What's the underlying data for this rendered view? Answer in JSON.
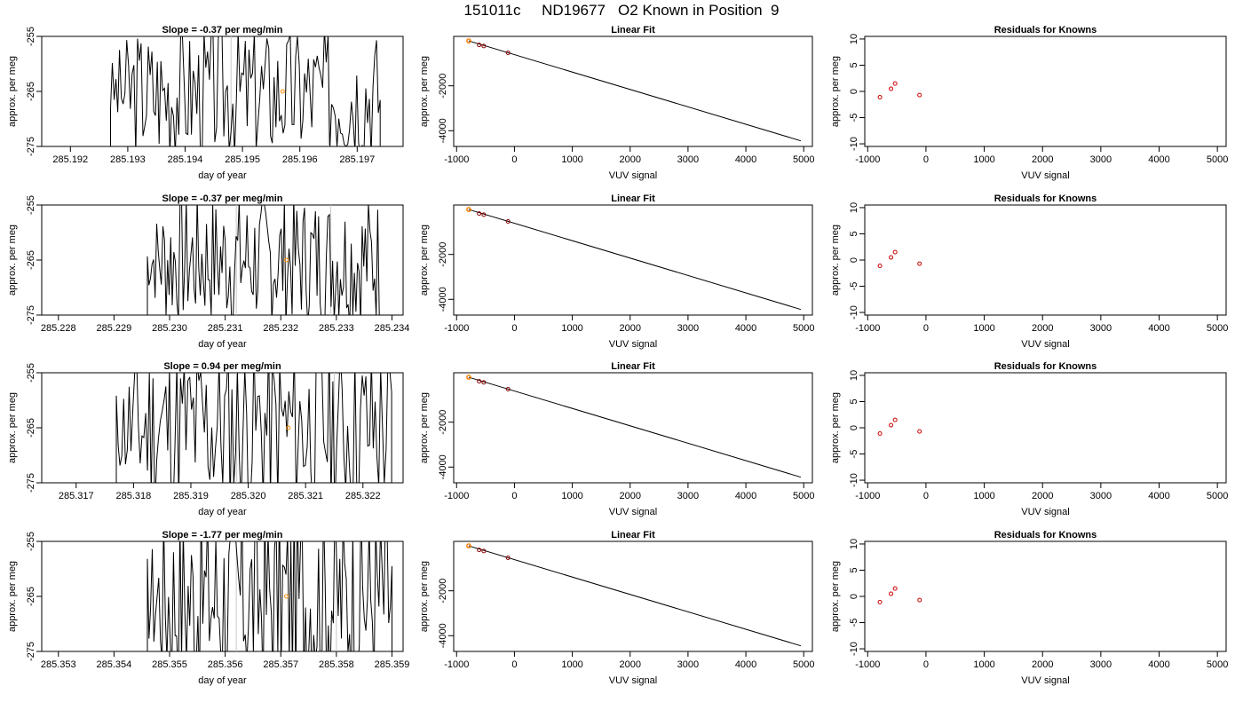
{
  "page": {
    "title": "151011c     ND19677   O2 Known in Position  9"
  },
  "colors": {
    "trace": "#000000",
    "marker": "#ff8c00",
    "residual": "#cc0000",
    "fit_point": "#8b0000",
    "vline": "#c8c8c8"
  },
  "chart_data": [
    {
      "type": "line",
      "title": "Slope =  -0.37  per meg/min",
      "xlabel": "day of year",
      "ylabel": "approx. per meg",
      "xlim": [
        285.1915,
        285.1978
      ],
      "ylim": [
        -275,
        -255
      ],
      "xticks": [
        "285.192",
        "285.193",
        "285.194",
        "285.195",
        "285.196",
        "285.197"
      ],
      "yticks": [
        "-255",
        "-265",
        "-275"
      ],
      "start": 285.1927,
      "end": 285.1974,
      "amplitude": 12,
      "seed": 3,
      "vlines": [
        285.1948,
        285.1965
      ],
      "marker": [
        285.1957,
        -265
      ]
    },
    {
      "type": "line",
      "title": "Linear Fit",
      "xlabel": "VUV signal",
      "ylabel": "approx. per meg",
      "xlim": [
        -1050,
        5150
      ],
      "ylim": [
        -4700,
        200
      ],
      "xticks": [
        "-1000",
        "0",
        "1000",
        "2000",
        "3000",
        "4000",
        "5000"
      ],
      "yticks": [
        "-2000",
        "-4000"
      ],
      "fit_points": [
        [
          -790,
          0
        ],
        [
          -610,
          -180
        ],
        [
          -530,
          -230
        ],
        [
          -110,
          -530
        ]
      ],
      "fit_line": [
        [
          -790,
          0
        ],
        [
          4950,
          -4450
        ]
      ],
      "marker": [
        -790,
        0
      ]
    },
    {
      "type": "scatter",
      "title": "Residuals for Knowns",
      "xlabel": "VUV signal",
      "ylabel": "approx. per meg",
      "xlim": [
        -1050,
        5150
      ],
      "ylim": [
        -10.5,
        10.5
      ],
      "xticks": [
        "-1000",
        "0",
        "1000",
        "2000",
        "3000",
        "4000",
        "5000"
      ],
      "yticks": [
        "10",
        "5",
        "0",
        "-5",
        "-10"
      ],
      "points": [
        [
          -790,
          -1.1
        ],
        [
          -600,
          0.5
        ],
        [
          -530,
          1.5
        ],
        [
          -110,
          -0.7
        ]
      ]
    },
    {
      "type": "line",
      "title": "Slope =  -0.37  per meg/min",
      "xlabel": "day of year",
      "ylabel": "approx. per meg",
      "xlim": [
        285.2277,
        285.2342
      ],
      "ylim": [
        -275,
        -255
      ],
      "xticks": [
        "285.228",
        "285.229",
        "285.230",
        "285.231",
        "285.232",
        "285.233",
        "285.234"
      ],
      "yticks": [
        "-255",
        "-265",
        "-275"
      ],
      "start": 285.2296,
      "end": 285.2338,
      "amplitude": 12,
      "seed": 7,
      "vlines": [
        285.2312,
        285.2329
      ],
      "marker": [
        285.2321,
        -265
      ]
    },
    {
      "type": "line",
      "title": "Linear Fit",
      "xlabel": "VUV signal",
      "ylabel": "approx. per meg",
      "xlim": [
        -1050,
        5150
      ],
      "ylim": [
        -4700,
        200
      ],
      "xticks": [
        "-1000",
        "0",
        "1000",
        "2000",
        "3000",
        "4000",
        "5000"
      ],
      "yticks": [
        "-2000",
        "-4000"
      ],
      "fit_points": [
        [
          -790,
          0
        ],
        [
          -610,
          -180
        ],
        [
          -530,
          -230
        ],
        [
          -110,
          -530
        ]
      ],
      "fit_line": [
        [
          -790,
          0
        ],
        [
          4950,
          -4450
        ]
      ],
      "marker": [
        -790,
        0
      ]
    },
    {
      "type": "scatter",
      "title": "Residuals for Knowns",
      "xlabel": "VUV signal",
      "ylabel": "approx. per meg",
      "xlim": [
        -1050,
        5150
      ],
      "ylim": [
        -10.5,
        10.5
      ],
      "xticks": [
        "-1000",
        "0",
        "1000",
        "2000",
        "3000",
        "4000",
        "5000"
      ],
      "yticks": [
        "10",
        "5",
        "0",
        "-5",
        "-10"
      ],
      "points": [
        [
          -790,
          -1.1
        ],
        [
          -600,
          0.5
        ],
        [
          -530,
          1.5
        ],
        [
          -110,
          -0.7
        ]
      ]
    },
    {
      "type": "line",
      "title": "Slope =  0.94  per meg/min",
      "xlabel": "day of year",
      "ylabel": "approx. per meg",
      "xlim": [
        285.3164,
        285.3227
      ],
      "ylim": [
        -275,
        -255
      ],
      "xticks": [
        "285.317",
        "285.318",
        "285.319",
        "285.320",
        "285.321",
        "285.322"
      ],
      "yticks": [
        "-255",
        "-265",
        "-275"
      ],
      "start": 285.3177,
      "end": 285.3225,
      "amplitude": 16,
      "seed": 11,
      "vlines": [
        285.3198,
        285.3215
      ],
      "marker": [
        285.3207,
        -265
      ]
    },
    {
      "type": "line",
      "title": "Linear Fit",
      "xlabel": "VUV signal",
      "ylabel": "approx. per meg",
      "xlim": [
        -1050,
        5150
      ],
      "ylim": [
        -4700,
        200
      ],
      "xticks": [
        "-1000",
        "0",
        "1000",
        "2000",
        "3000",
        "4000",
        "5000"
      ],
      "yticks": [
        "-2000",
        "-4000"
      ],
      "fit_points": [
        [
          -790,
          0
        ],
        [
          -610,
          -180
        ],
        [
          -530,
          -230
        ],
        [
          -110,
          -530
        ]
      ],
      "fit_line": [
        [
          -790,
          0
        ],
        [
          4950,
          -4450
        ]
      ],
      "marker": [
        -790,
        0
      ]
    },
    {
      "type": "scatter",
      "title": "Residuals for Knowns",
      "xlabel": "VUV signal",
      "ylabel": "approx. per meg",
      "xlim": [
        -1050,
        5150
      ],
      "ylim": [
        -10.5,
        10.5
      ],
      "xticks": [
        "-1000",
        "0",
        "1000",
        "2000",
        "3000",
        "4000",
        "5000"
      ],
      "yticks": [
        "10",
        "5",
        "0",
        "-5",
        "-10"
      ],
      "points": [
        [
          -790,
          -1.1
        ],
        [
          -600,
          0.5
        ],
        [
          -530,
          1.5
        ],
        [
          -110,
          -0.7
        ]
      ]
    },
    {
      "type": "line",
      "title": "Slope =  -1.77  per meg/min",
      "xlabel": "day of year",
      "ylabel": "approx. per meg",
      "xlim": [
        285.3527,
        285.3592
      ],
      "ylim": [
        -275,
        -255
      ],
      "xticks": [
        "285.353",
        "285.354",
        "285.355",
        "285.356",
        "285.357",
        "285.358",
        "285.359"
      ],
      "yticks": [
        "-255",
        "-265",
        "-275"
      ],
      "start": 285.3546,
      "end": 285.359,
      "amplitude": 18,
      "seed": 17,
      "vlines": [
        285.3562,
        285.358
      ],
      "marker": [
        285.3571,
        -265
      ]
    },
    {
      "type": "line",
      "title": "Linear Fit",
      "xlabel": "VUV signal",
      "ylabel": "approx. per meg",
      "xlim": [
        -1050,
        5150
      ],
      "ylim": [
        -4700,
        200
      ],
      "xticks": [
        "-1000",
        "0",
        "1000",
        "2000",
        "3000",
        "4000",
        "5000"
      ],
      "yticks": [
        "-2000",
        "-4000"
      ],
      "fit_points": [
        [
          -790,
          0
        ],
        [
          -610,
          -180
        ],
        [
          -530,
          -230
        ],
        [
          -110,
          -530
        ]
      ],
      "fit_line": [
        [
          -790,
          0
        ],
        [
          4950,
          -4450
        ]
      ],
      "marker": [
        -790,
        0
      ]
    },
    {
      "type": "scatter",
      "title": "Residuals for Knowns",
      "xlabel": "VUV signal",
      "ylabel": "approx. per meg",
      "xlim": [
        -1050,
        5150
      ],
      "ylim": [
        -10.5,
        10.5
      ],
      "xticks": [
        "-1000",
        "0",
        "1000",
        "2000",
        "3000",
        "4000",
        "5000"
      ],
      "yticks": [
        "10",
        "5",
        "0",
        "-5",
        "-10"
      ],
      "points": [
        [
          -790,
          -1.1
        ],
        [
          -600,
          0.5
        ],
        [
          -530,
          1.5
        ],
        [
          -110,
          -0.7
        ]
      ]
    }
  ]
}
